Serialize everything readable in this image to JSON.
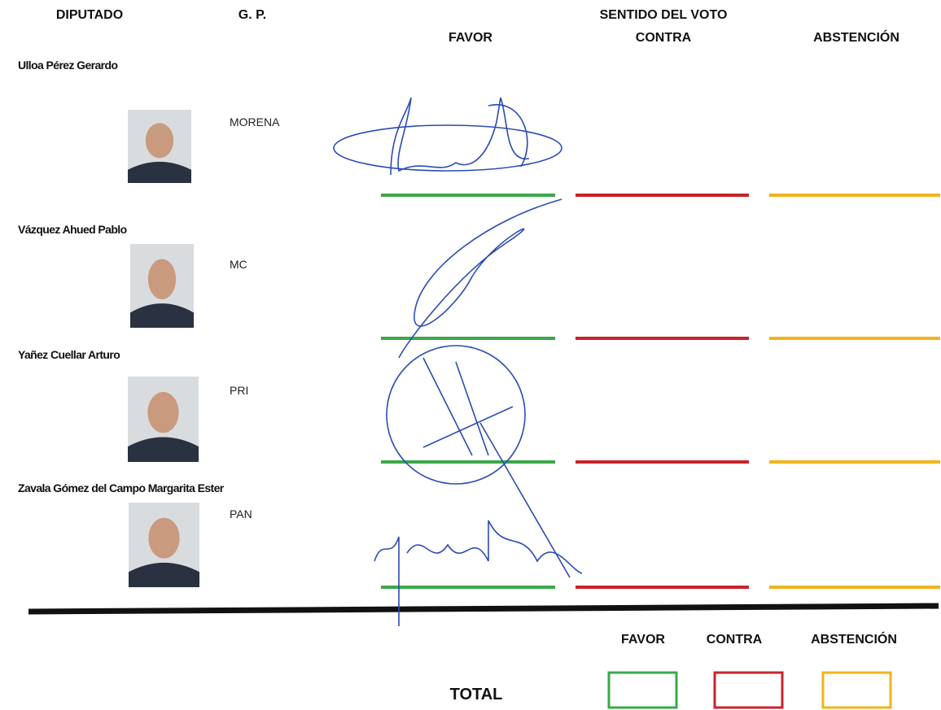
{
  "header": {
    "diputado": "DIPUTADO",
    "gp": "G. P.",
    "sentido": "SENTIDO DEL VOTO",
    "favor": "FAVOR",
    "contra": "CONTRA",
    "abstencion": "ABSTENCIÓN"
  },
  "rows": [
    {
      "name": "Ulloa Pérez Gerardo",
      "party": "MORENA"
    },
    {
      "name": "Vázquez Ahued Pablo",
      "party": "MC"
    },
    {
      "name": "Yañez Cuellar Arturo",
      "party": "PRI"
    },
    {
      "name": "Zavala Gómez del Campo Margarita Ester",
      "party": "PAN"
    }
  ],
  "footer": {
    "favor": "FAVOR",
    "contra": "CONTRA",
    "abstencion": "ABSTENCIÓN",
    "total": "TOTAL"
  }
}
